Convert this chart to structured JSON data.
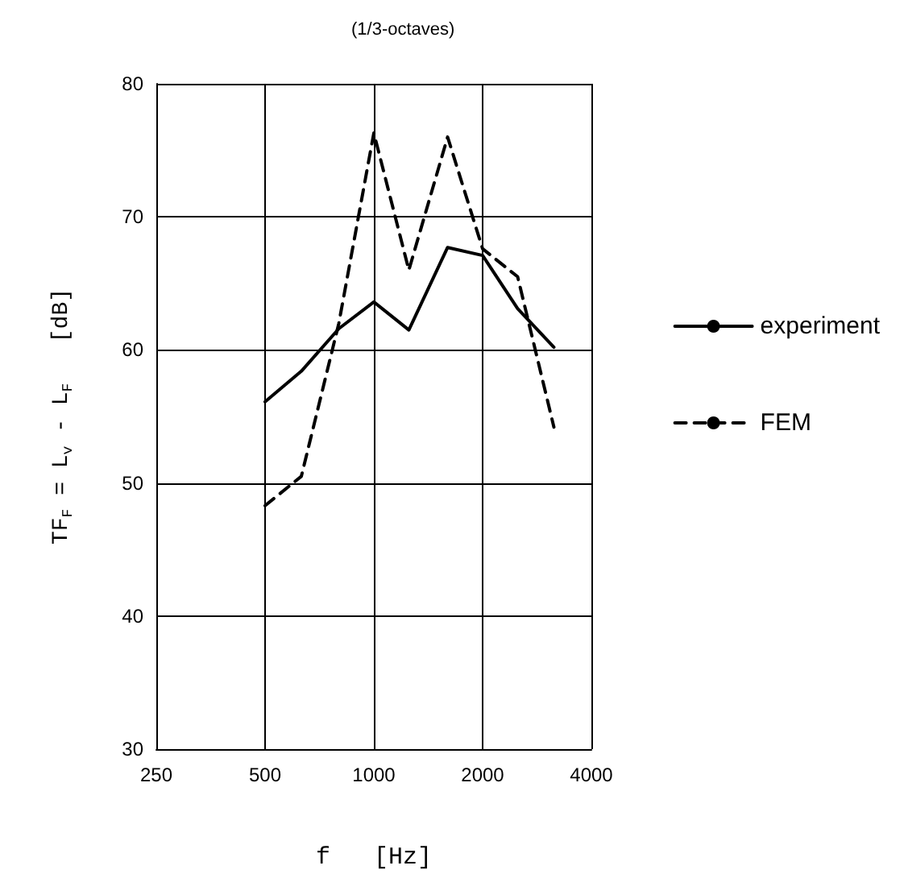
{
  "chart_data": {
    "type": "line",
    "subtitle": "(1/3-octaves)",
    "xlabel": "f   [Hz]",
    "ylabel": "TF$_{F}$ = L$_{v}$ - L$_{F}$   [dB]",
    "x": [
      500,
      630,
      800,
      1000,
      1250,
      1600,
      2000,
      2500,
      3150
    ],
    "series": [
      {
        "name": "experiment",
        "color": "#000000",
        "line_style": "solid",
        "values": [
          56.1,
          58.4,
          61.6,
          63.6,
          61.5,
          67.7,
          67.1,
          63.1,
          60.2
        ]
      },
      {
        "name": "FEM",
        "color": "#000000",
        "line_style": "dashed",
        "values": [
          48.3,
          50.5,
          62,
          76.3,
          66,
          76,
          67.6,
          65.5,
          54.2
        ]
      }
    ],
    "xlim": [
      250,
      4000
    ],
    "xticks": [
      250,
      500,
      1000,
      2000,
      4000
    ],
    "ylim": [
      30,
      80
    ],
    "yticks": [
      30,
      40,
      50,
      60,
      70,
      80
    ],
    "log": "x",
    "grid": true,
    "legend": "right",
    "marker": "none"
  }
}
